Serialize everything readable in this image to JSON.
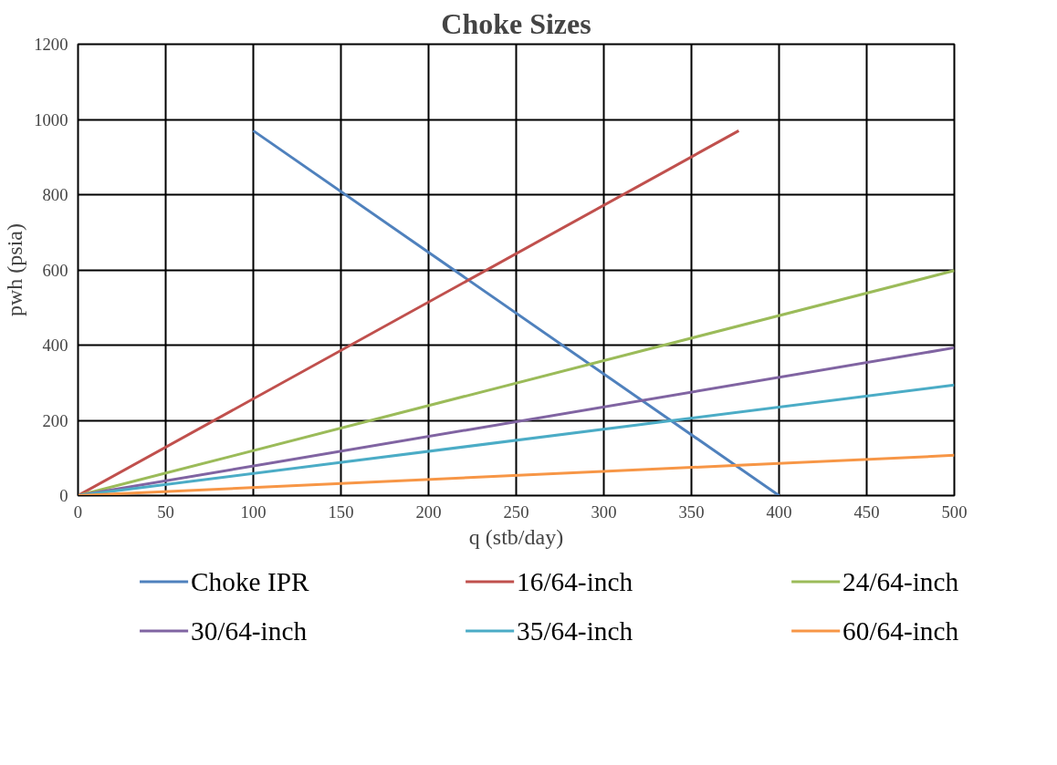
{
  "chart_data": {
    "type": "line",
    "title": "Choke Sizes",
    "xlabel": "q (stb/day)",
    "ylabel": "pwh (psia)",
    "xlim": [
      0,
      500
    ],
    "xticks": [
      0,
      50,
      100,
      150,
      200,
      250,
      300,
      350,
      400,
      450,
      500
    ],
    "ylim": [
      0,
      1200
    ],
    "yticks": [
      0,
      200,
      400,
      600,
      800,
      1000,
      1200
    ],
    "grid": true,
    "legend": "bottom",
    "marker": "none",
    "line_style": "solid",
    "series": [
      {
        "name": "Choke IPR",
        "color": "#4f81bd",
        "x": [
          100,
          400
        ],
        "values": [
          970,
          0
        ]
      },
      {
        "name": "16/64-inch",
        "color": "#c0504d",
        "x": [
          0,
          377
        ],
        "values": [
          0,
          970
        ]
      },
      {
        "name": "24/64-inch",
        "color": "#9bbb59",
        "x": [
          0,
          500
        ],
        "values": [
          0,
          598
        ]
      },
      {
        "name": "30/64-inch",
        "color": "#8064a2",
        "x": [
          0,
          500
        ],
        "values": [
          0,
          393
        ]
      },
      {
        "name": "35/64-inch",
        "color": "#4bacc6",
        "x": [
          0,
          500
        ],
        "values": [
          0,
          294
        ]
      },
      {
        "name": "60/64-inch",
        "color": "#f79646",
        "x": [
          0,
          500
        ],
        "values": [
          0,
          107
        ]
      }
    ]
  }
}
